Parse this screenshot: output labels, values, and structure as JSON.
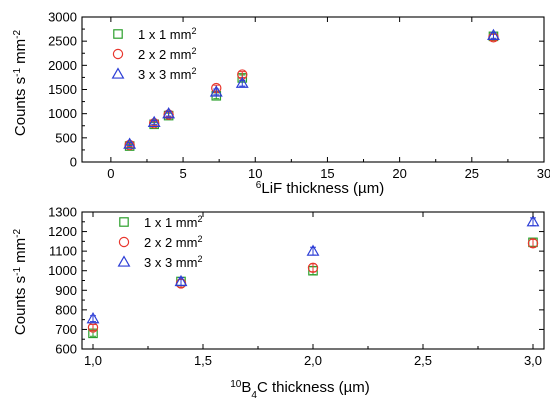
{
  "colors": {
    "series1": "#2ca02c",
    "series2": "#e8372e",
    "series3": "#2d3ed6",
    "axes": "#000000"
  },
  "chart_data": [
    {
      "type": "scatter",
      "xlabel_main": "LiF thickness (µm)",
      "xlabel_sup": "6",
      "ylabel_main": "Counts s",
      "ylabel_sup1": "-1",
      "ylabel_mid": " mm",
      "ylabel_sup2": "-2",
      "xlim": [
        -2,
        30
      ],
      "ylim": [
        0,
        3000
      ],
      "xticks": [
        0,
        5,
        10,
        15,
        20,
        25,
        30
      ],
      "xtick_labels": [
        "0",
        "5",
        "10",
        "15",
        "20",
        "25",
        "30"
      ],
      "yticks": [
        0,
        500,
        1000,
        1500,
        2000,
        2500,
        3000
      ],
      "ytick_labels": [
        "0",
        "500",
        "1000",
        "1500",
        "2000",
        "2500",
        "3000"
      ],
      "legend_placement": "top-left",
      "series": [
        {
          "name": "1 x 1 mm",
          "name_sup": "2",
          "marker": "square",
          "x": [
            1.3,
            3.0,
            4.0,
            7.3,
            9.1,
            26.5
          ],
          "y": [
            330,
            780,
            960,
            1370,
            1740,
            2600
          ],
          "err": [
            30,
            40,
            50,
            60,
            60,
            60
          ]
        },
        {
          "name": "2 x 2 mm",
          "name_sup": "2",
          "marker": "circle",
          "x": [
            1.3,
            3.0,
            4.0,
            7.3,
            9.1,
            26.5
          ],
          "y": [
            350,
            800,
            980,
            1530,
            1810,
            2580
          ],
          "err": [
            30,
            40,
            50,
            60,
            60,
            60
          ]
        },
        {
          "name": "3 x 3 mm",
          "name_sup": "2",
          "marker": "triangle",
          "x": [
            1.3,
            3.0,
            4.0,
            7.3,
            9.1,
            26.5
          ],
          "y": [
            370,
            820,
            1000,
            1450,
            1630,
            2620
          ],
          "err": [
            30,
            40,
            50,
            60,
            60,
            60
          ]
        }
      ]
    },
    {
      "type": "scatter",
      "xlabel_sup": "10",
      "xlabel_main": "B",
      "xlabel_sub": "4",
      "xlabel_rest": "C thickness (µm)",
      "ylabel_main": "Counts s",
      "ylabel_sup1": "-1",
      "ylabel_mid": " mm",
      "ylabel_sup2": "-2",
      "xlim": [
        0.95,
        3.05
      ],
      "ylim": [
        600,
        1300
      ],
      "xticks": [
        1.0,
        1.5,
        2.0,
        2.5,
        3.0
      ],
      "xtick_labels": [
        "1,0",
        "1,5",
        "2,0",
        "2,5",
        "3,0"
      ],
      "yticks": [
        600,
        700,
        800,
        900,
        1000,
        1100,
        1200,
        1300
      ],
      "ytick_labels": [
        "600",
        "700",
        "800",
        "900",
        "1000",
        "1100",
        "1200",
        "1300"
      ],
      "legend_placement": "top-left",
      "series": [
        {
          "name": "1 x 1 mm",
          "name_sup": "2",
          "marker": "square",
          "x": [
            1.0,
            1.4,
            2.0,
            3.0
          ],
          "y": [
            680,
            945,
            1000,
            1145
          ],
          "err": [
            15,
            20,
            20,
            20
          ]
        },
        {
          "name": "2 x 2 mm",
          "name_sup": "2",
          "marker": "circle",
          "x": [
            1.0,
            1.4,
            2.0,
            3.0
          ],
          "y": [
            710,
            935,
            1015,
            1140
          ],
          "err": [
            15,
            20,
            20,
            20
          ]
        },
        {
          "name": "3 x 3 mm",
          "name_sup": "2",
          "marker": "triangle",
          "x": [
            1.0,
            1.4,
            2.0,
            3.0
          ],
          "y": [
            755,
            945,
            1100,
            1250
          ],
          "err": [
            15,
            20,
            20,
            20
          ]
        }
      ]
    }
  ]
}
